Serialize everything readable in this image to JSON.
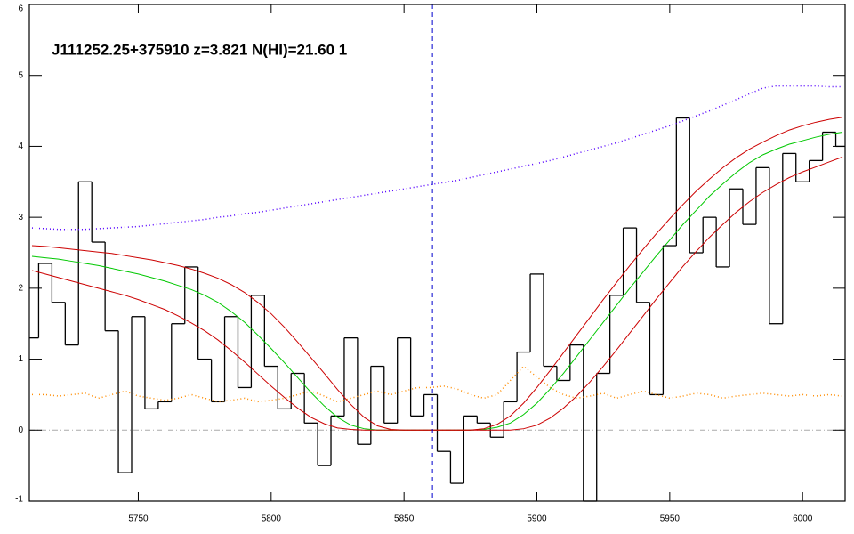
{
  "chart_data": {
    "type": "line",
    "title": "J111252.25+375910 z=3.821 N(HI)=21.60 1",
    "x": [
      5710,
      5715,
      5720,
      5725,
      5730,
      5735,
      5740,
      5745,
      5750,
      5755,
      5760,
      5765,
      5770,
      5775,
      5780,
      5785,
      5790,
      5795,
      5800,
      5805,
      5810,
      5815,
      5820,
      5825,
      5830,
      5835,
      5840,
      5845,
      5850,
      5855,
      5860,
      5865,
      5870,
      5875,
      5880,
      5885,
      5890,
      5895,
      5900,
      5905,
      5910,
      5915,
      5920,
      5925,
      5930,
      5935,
      5940,
      5945,
      5950,
      5955,
      5960,
      5965,
      5970,
      5975,
      5980,
      5985,
      5990,
      5995,
      6000,
      6005,
      6010,
      6015
    ],
    "series": [
      {
        "color": "#000000",
        "style": "steps",
        "values": [
          1.3,
          2.35,
          1.8,
          1.2,
          3.5,
          2.65,
          1.4,
          -0.6,
          1.6,
          0.3,
          0.4,
          1.5,
          2.3,
          1.0,
          0.4,
          1.6,
          0.6,
          1.9,
          0.9,
          0.3,
          0.8,
          0.1,
          -0.5,
          0.2,
          1.3,
          -0.2,
          0.9,
          0.1,
          1.3,
          0.2,
          0.5,
          -0.3,
          -0.75,
          0.2,
          0.1,
          -0.1,
          0.4,
          1.1,
          2.2,
          0.9,
          0.7,
          1.2,
          -1.0,
          0.8,
          1.9,
          2.85,
          1.8,
          0.5,
          2.6,
          4.4,
          2.5,
          3.0,
          2.3,
          3.4,
          2.9,
          3.7,
          1.5,
          3.9,
          3.5,
          3.8,
          4.2,
          4.0
        ]
      },
      {
        "color": "#ff8c00",
        "style": "dotted",
        "values": [
          0.5,
          0.5,
          0.48,
          0.5,
          0.52,
          0.45,
          0.5,
          0.55,
          0.48,
          0.45,
          0.42,
          0.45,
          0.5,
          0.45,
          0.4,
          0.42,
          0.45,
          0.4,
          0.42,
          0.45,
          0.5,
          0.55,
          0.48,
          0.4,
          0.45,
          0.5,
          0.55,
          0.5,
          0.55,
          0.6,
          0.6,
          0.62,
          0.58,
          0.5,
          0.45,
          0.5,
          0.7,
          0.9,
          0.75,
          0.6,
          0.5,
          0.45,
          0.48,
          0.52,
          0.45,
          0.5,
          0.55,
          0.5,
          0.45,
          0.48,
          0.52,
          0.5,
          0.45,
          0.48,
          0.5,
          0.52,
          0.5,
          0.48,
          0.5,
          0.48,
          0.5,
          0.48
        ]
      },
      {
        "color": "#5500ff",
        "style": "dotted",
        "values": [
          2.85,
          2.84,
          2.83,
          2.83,
          2.83,
          2.84,
          2.85,
          2.86,
          2.87,
          2.89,
          2.91,
          2.93,
          2.95,
          2.97,
          3.0,
          3.02,
          3.05,
          3.07,
          3.1,
          3.13,
          3.16,
          3.19,
          3.22,
          3.25,
          3.28,
          3.31,
          3.34,
          3.37,
          3.4,
          3.43,
          3.46,
          3.49,
          3.52,
          3.56,
          3.6,
          3.64,
          3.68,
          3.72,
          3.76,
          3.8,
          3.85,
          3.9,
          3.95,
          4.0,
          4.05,
          4.11,
          4.17,
          4.23,
          4.29,
          4.36,
          4.43,
          4.5,
          4.58,
          4.66,
          4.74,
          4.82,
          4.85,
          4.85,
          4.85,
          4.85,
          4.84,
          4.84
        ]
      },
      {
        "color": "#00c800",
        "style": "solid",
        "values": [
          2.45,
          2.43,
          2.41,
          2.38,
          2.35,
          2.32,
          2.28,
          2.24,
          2.2,
          2.15,
          2.1,
          2.04,
          1.98,
          1.9,
          1.8,
          1.67,
          1.52,
          1.34,
          1.15,
          0.95,
          0.74,
          0.53,
          0.34,
          0.18,
          0.07,
          0.02,
          0,
          0,
          0,
          0,
          0,
          0,
          0,
          0,
          0.01,
          0.04,
          0.1,
          0.22,
          0.38,
          0.58,
          0.8,
          1.04,
          1.28,
          1.52,
          1.76,
          2.0,
          2.23,
          2.46,
          2.68,
          2.9,
          3.1,
          3.3,
          3.47,
          3.63,
          3.77,
          3.88,
          3.96,
          4.03,
          4.08,
          4.13,
          4.17,
          4.2
        ]
      },
      {
        "color": "#cc0000",
        "style": "solid",
        "values": [
          2.6,
          2.59,
          2.57,
          2.55,
          2.53,
          2.51,
          2.49,
          2.46,
          2.43,
          2.4,
          2.36,
          2.32,
          2.27,
          2.21,
          2.14,
          2.05,
          1.94,
          1.8,
          1.64,
          1.45,
          1.24,
          1.02,
          0.8,
          0.57,
          0.36,
          0.18,
          0.06,
          0.01,
          0,
          0,
          0,
          0,
          0,
          0,
          0.02,
          0.08,
          0.2,
          0.38,
          0.6,
          0.84,
          1.09,
          1.34,
          1.59,
          1.84,
          2.08,
          2.32,
          2.55,
          2.77,
          2.98,
          3.18,
          3.37,
          3.54,
          3.7,
          3.84,
          3.96,
          4.06,
          4.15,
          4.23,
          4.29,
          4.34,
          4.38,
          4.41
        ]
      },
      {
        "color": "#cc0000",
        "style": "solid",
        "values": [
          2.25,
          2.2,
          2.15,
          2.1,
          2.05,
          2.0,
          1.95,
          1.9,
          1.84,
          1.77,
          1.7,
          1.61,
          1.51,
          1.4,
          1.27,
          1.12,
          0.96,
          0.79,
          0.62,
          0.46,
          0.31,
          0.18,
          0.09,
          0.03,
          0.01,
          0,
          0,
          0,
          0,
          0,
          0,
          0,
          0,
          0,
          0,
          0,
          0,
          0.02,
          0.07,
          0.17,
          0.31,
          0.48,
          0.68,
          0.9,
          1.13,
          1.37,
          1.61,
          1.85,
          2.08,
          2.31,
          2.52,
          2.72,
          2.9,
          3.07,
          3.22,
          3.35,
          3.46,
          3.56,
          3.64,
          3.71,
          3.78,
          3.85
        ]
      }
    ],
    "xlim": [
      5709,
      6016
    ],
    "xticks": [
      5750,
      5800,
      5850,
      5900,
      5950,
      6000
    ],
    "ylim": [
      -1,
      6
    ],
    "yticks": [
      -1,
      0,
      1,
      2,
      3,
      4,
      5,
      6
    ],
    "zero_line_color": "#aaaaaa",
    "vline": 5860.7,
    "vline_color": "#0000cc"
  }
}
